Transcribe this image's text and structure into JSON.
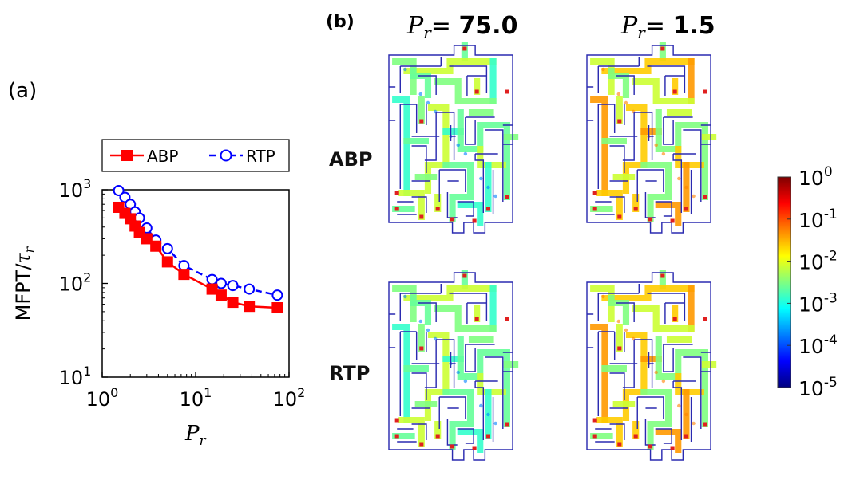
{
  "panel_a": {
    "label": "(a)",
    "chart_data": {
      "type": "line",
      "title": "",
      "xlabel": "P_r",
      "ylabel": "MFPT/τ_r",
      "xscale": "log",
      "yscale": "log",
      "xlim": [
        1,
        100
      ],
      "ylim": [
        10,
        1000
      ],
      "grid": false,
      "legend_placement": "top",
      "x_ticks": [
        {
          "base": "10",
          "exp": "0",
          "value": 1
        },
        {
          "base": "10",
          "exp": "1",
          "value": 10
        },
        {
          "base": "10",
          "exp": "2",
          "value": 100
        }
      ],
      "y_ticks": [
        {
          "base": "10",
          "exp": "1",
          "value": 10
        },
        {
          "base": "10",
          "exp": "2",
          "value": 100
        },
        {
          "base": "10",
          "exp": "3",
          "value": 1000
        }
      ],
      "series": [
        {
          "name": "ABP",
          "color": "#ff0000",
          "marker": "square",
          "line": "solid",
          "x": [
            1.5,
            1.75,
            2.0,
            2.25,
            2.5,
            3.0,
            3.75,
            5.0,
            7.5,
            15.0,
            18.75,
            25.0,
            37.5,
            75.0
          ],
          "y": [
            650,
            560,
            490,
            410,
            350,
            300,
            250,
            170,
            125,
            87,
            75,
            63,
            57,
            55
          ]
        },
        {
          "name": "RTP",
          "color": "#0000ff",
          "marker": "circle",
          "line": "dashed",
          "x": [
            1.5,
            1.75,
            2.0,
            2.25,
            2.5,
            3.0,
            3.75,
            5.0,
            7.5,
            15.0,
            18.75,
            25.0,
            37.5,
            75.0
          ],
          "y": [
            980,
            830,
            700,
            580,
            500,
            390,
            290,
            235,
            155,
            110,
            100,
            95,
            87,
            75
          ]
        }
      ]
    }
  },
  "panel_b": {
    "label": "(b)",
    "column_headers": [
      {
        "sym": "P",
        "sub": "r",
        "eq": "= ",
        "val": "75.0"
      },
      {
        "sym": "P",
        "sub": "r",
        "eq": "= ",
        "val": "1.5"
      }
    ],
    "row_labels": [
      "ABP",
      "RTP"
    ],
    "colorbar": {
      "colors": [
        "#00007f",
        "#0000ff",
        "#0080ff",
        "#00ffff",
        "#80ff80",
        "#ffff00",
        "#ff8000",
        "#ff0000",
        "#7f0000"
      ],
      "ticks": [
        {
          "base": "10",
          "exp": "0"
        },
        {
          "base": "10",
          "exp": "-1"
        },
        {
          "base": "10",
          "exp": "-2"
        },
        {
          "base": "10",
          "exp": "-3"
        },
        {
          "base": "10",
          "exp": "-4"
        },
        {
          "base": "10",
          "exp": "-5"
        }
      ]
    },
    "maze_palettes": {
      "high_pr": [
        "#66ff99",
        "#80ff80",
        "#ccff33",
        "#33ffcc",
        "#0080ff"
      ],
      "low_pr": [
        "#80ff80",
        "#ccff33",
        "#ffcc00",
        "#ff9900",
        "#ff8000"
      ]
    }
  }
}
